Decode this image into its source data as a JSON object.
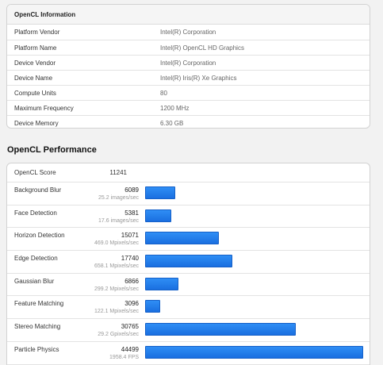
{
  "info": {
    "title": "OpenCL Information",
    "rows": [
      {
        "key": "Platform Vendor",
        "value": "Intel(R) Corporation"
      },
      {
        "key": "Platform Name",
        "value": "Intel(R) OpenCL HD Graphics"
      },
      {
        "key": "Device Vendor",
        "value": "Intel(R) Corporation"
      },
      {
        "key": "Device Name",
        "value": "Intel(R) Iris(R) Xe Graphics"
      },
      {
        "key": "Compute Units",
        "value": "80"
      },
      {
        "key": "Maximum Frequency",
        "value": "1200 MHz"
      },
      {
        "key": "Device Memory",
        "value": "6.30 GB"
      }
    ]
  },
  "performance": {
    "title": "OpenCL Performance",
    "score_label": "OpenCL Score",
    "score_value": "11241",
    "bar_max": 44499,
    "tests": [
      {
        "name": "Background Blur",
        "score": 6089,
        "rate": "25.2 images/sec"
      },
      {
        "name": "Face Detection",
        "score": 5381,
        "rate": "17.6 images/sec"
      },
      {
        "name": "Horizon Detection",
        "score": 15071,
        "rate": "469.0 Mpixels/sec"
      },
      {
        "name": "Edge Detection",
        "score": 17740,
        "rate": "658.1 Mpixels/sec"
      },
      {
        "name": "Gaussian Blur",
        "score": 6866,
        "rate": "299.2 Mpixels/sec"
      },
      {
        "name": "Feature Matching",
        "score": 3096,
        "rate": "122.1 Mpixels/sec"
      },
      {
        "name": "Stereo Matching",
        "score": 30765,
        "rate": "29.2 Gpixels/sec"
      },
      {
        "name": "Particle Physics",
        "score": 44499,
        "rate": "1958.4 FPS"
      }
    ]
  },
  "colors": {
    "bar": "#1f78e8"
  }
}
